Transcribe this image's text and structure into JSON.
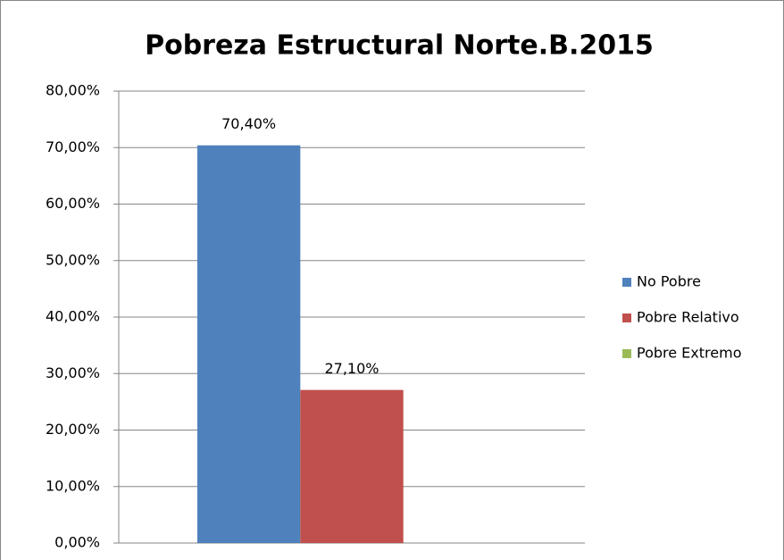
{
  "chart_data": {
    "type": "bar",
    "title": "Pobreza Estructural  Norte.B.2015",
    "categories": [
      null
    ],
    "series": [
      {
        "name": "No Pobre",
        "color": "#4f81bd",
        "values": [
          70.4
        ],
        "value_labels": [
          "70,40%"
        ]
      },
      {
        "name": "Pobre Relativo",
        "color": "#c0504d",
        "values": [
          27.1
        ],
        "value_labels": [
          "27,10%"
        ]
      },
      {
        "name": "Pobre Extremo",
        "color": "#9bbb59",
        "values": [
          null
        ]
      }
    ],
    "ylim": [
      0,
      80
    ],
    "yticks": [
      {
        "value": 0,
        "label": "0,00%"
      },
      {
        "value": 10,
        "label": "10,00%"
      },
      {
        "value": 20,
        "label": "20,00%"
      },
      {
        "value": 30,
        "label": "30,00%"
      },
      {
        "value": 40,
        "label": "40,00%"
      },
      {
        "value": 50,
        "label": "50,00%"
      },
      {
        "value": 60,
        "label": "60,00%"
      },
      {
        "value": 70,
        "label": "70,00%"
      },
      {
        "value": 80,
        "label": "80,00%"
      }
    ],
    "grid": true,
    "legend": "right"
  }
}
